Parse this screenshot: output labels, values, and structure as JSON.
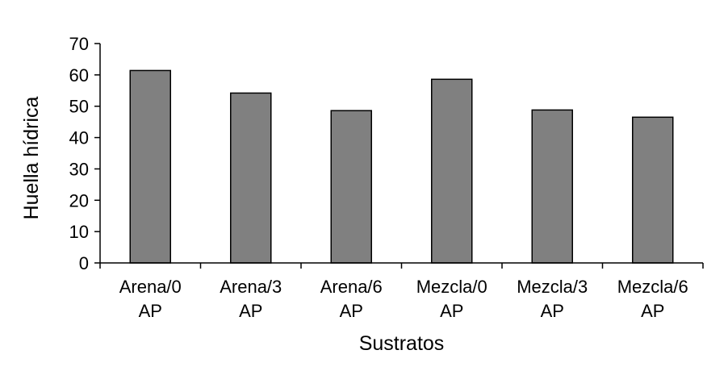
{
  "chart_data": {
    "type": "bar",
    "categories": [
      [
        "Arena/0",
        "AP"
      ],
      [
        "Arena/3",
        "AP"
      ],
      [
        "Arena/6",
        "AP"
      ],
      [
        "Mezcla/0",
        "AP"
      ],
      [
        "Mezcla/3",
        "AP"
      ],
      [
        "Mezcla/6",
        "AP"
      ]
    ],
    "values": [
      61.4,
      54.2,
      48.6,
      58.6,
      48.8,
      46.5
    ],
    "xlabel": "Sustratos",
    "ylabel": "Huella hídrica",
    "ylim": [
      0,
      70
    ],
    "yticks": [
      0,
      10,
      20,
      30,
      40,
      50,
      60,
      70
    ],
    "grid": false,
    "colors": {
      "bar_fill": "#808080",
      "bar_stroke": "#000000",
      "axis": "#000000"
    }
  }
}
